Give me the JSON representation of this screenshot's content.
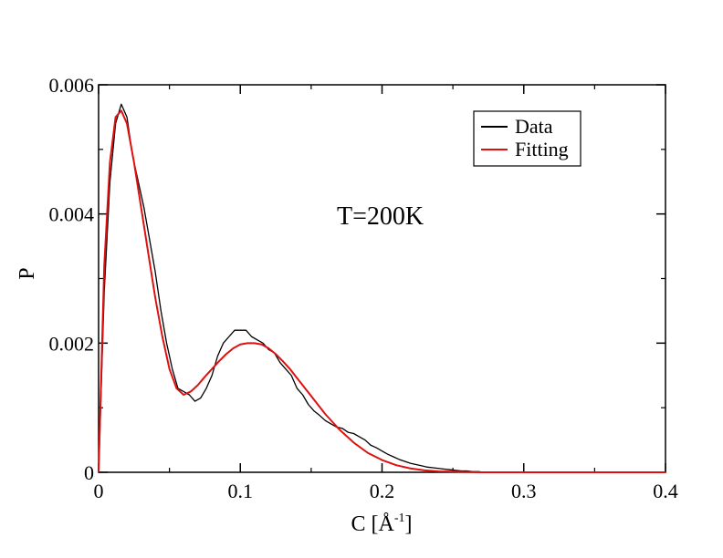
{
  "chart_data": {
    "type": "line",
    "title": "",
    "annotation": "T=200K",
    "xlabel_main": "C [",
    "xlabel_unit": "Å",
    "xlabel_sup": "-1",
    "xlabel_end": "]",
    "ylabel": "P",
    "xlim": [
      0,
      0.4
    ],
    "ylim": [
      0,
      0.006
    ],
    "x_ticks": [
      0,
      0.1,
      0.2,
      0.3,
      0.4
    ],
    "x_tick_labels": [
      "0",
      "0.1",
      "0.2",
      "0.3",
      "0.4"
    ],
    "y_ticks": [
      0,
      0.002,
      0.004,
      0.006
    ],
    "y_tick_labels": [
      "0",
      "0.002",
      "0.004",
      "0.006"
    ],
    "grid": false,
    "legend_position": "top-right",
    "series": [
      {
        "name": "Data",
        "color": "#000000",
        "x": [
          0.0,
          0.004,
          0.008,
          0.012,
          0.016,
          0.02,
          0.024,
          0.028,
          0.032,
          0.036,
          0.04,
          0.044,
          0.048,
          0.052,
          0.056,
          0.06,
          0.064,
          0.068,
          0.072,
          0.076,
          0.08,
          0.084,
          0.088,
          0.092,
          0.096,
          0.1,
          0.104,
          0.108,
          0.112,
          0.116,
          0.12,
          0.124,
          0.128,
          0.132,
          0.136,
          0.14,
          0.144,
          0.148,
          0.152,
          0.156,
          0.16,
          0.164,
          0.168,
          0.172,
          0.176,
          0.18,
          0.184,
          0.188,
          0.192,
          0.196,
          0.2,
          0.204,
          0.208,
          0.212,
          0.216,
          0.22,
          0.224,
          0.228,
          0.232,
          0.236,
          0.24,
          0.244,
          0.248,
          0.252,
          0.256,
          0.26,
          0.264,
          0.268,
          0.272,
          0.276,
          0.28,
          0.29,
          0.3,
          0.32,
          0.34,
          0.36,
          0.38,
          0.4
        ],
        "y": [
          0.0,
          0.0028,
          0.0045,
          0.0054,
          0.0057,
          0.0055,
          0.0049,
          0.0045,
          0.0041,
          0.0036,
          0.0031,
          0.0025,
          0.002,
          0.0016,
          0.0013,
          0.00125,
          0.0012,
          0.0011,
          0.00115,
          0.0013,
          0.0015,
          0.0018,
          0.002,
          0.0021,
          0.0022,
          0.0022,
          0.0022,
          0.0021,
          0.00205,
          0.002,
          0.0019,
          0.00185,
          0.0017,
          0.0016,
          0.0015,
          0.0013,
          0.0012,
          0.00105,
          0.00095,
          0.00088,
          0.0008,
          0.00075,
          0.0007,
          0.00068,
          0.00062,
          0.0006,
          0.00055,
          0.0005,
          0.00042,
          0.00038,
          0.00033,
          0.00028,
          0.00024,
          0.0002,
          0.00017,
          0.00014,
          0.00012,
          0.0001,
          8e-05,
          7e-05,
          6e-05,
          5e-05,
          4e-05,
          3e-05,
          2e-05,
          2e-05,
          1e-05,
          1e-05,
          0.0,
          0.0,
          0.0,
          0.0,
          0.0,
          0.0,
          0.0,
          0.0,
          0.0,
          0.0
        ]
      },
      {
        "name": "Fitting",
        "color": "#e01010",
        "x": [
          0.0,
          0.004,
          0.008,
          0.012,
          0.016,
          0.02,
          0.025,
          0.03,
          0.035,
          0.04,
          0.045,
          0.05,
          0.055,
          0.06,
          0.065,
          0.07,
          0.075,
          0.08,
          0.085,
          0.09,
          0.095,
          0.1,
          0.105,
          0.11,
          0.115,
          0.12,
          0.125,
          0.13,
          0.135,
          0.14,
          0.145,
          0.15,
          0.16,
          0.17,
          0.18,
          0.19,
          0.2,
          0.21,
          0.22,
          0.23,
          0.24,
          0.25,
          0.26,
          0.27,
          0.28,
          0.3,
          0.35,
          0.4
        ],
        "y": [
          0.0,
          0.0032,
          0.0048,
          0.0055,
          0.0056,
          0.0054,
          0.0048,
          0.0041,
          0.0034,
          0.0027,
          0.0021,
          0.0016,
          0.0013,
          0.0012,
          0.00125,
          0.00135,
          0.00148,
          0.0016,
          0.00172,
          0.00183,
          0.00192,
          0.00198,
          0.002,
          0.002,
          0.00198,
          0.00192,
          0.00183,
          0.00172,
          0.0016,
          0.00146,
          0.00132,
          0.00118,
          0.0009,
          0.00066,
          0.00046,
          0.0003,
          0.00019,
          0.00011,
          6e-05,
          3e-05,
          1.5e-05,
          1e-05,
          5e-06,
          0.0,
          0.0,
          0.0,
          0.0,
          0.0
        ]
      }
    ]
  }
}
